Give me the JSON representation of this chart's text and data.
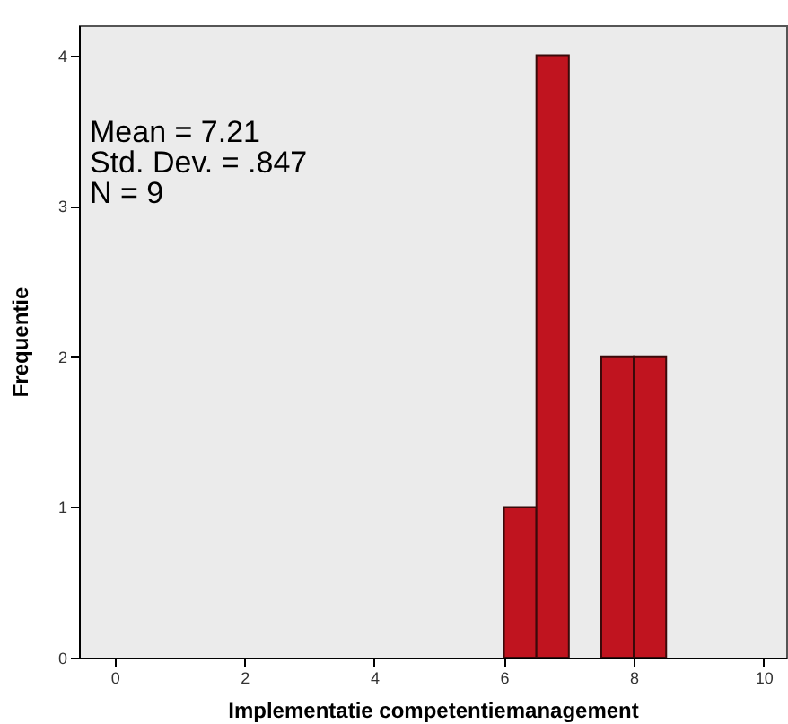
{
  "chart_data": {
    "type": "histogram",
    "xlabel": "Implementatie competentiemanagement",
    "ylabel": "Frequentie",
    "bins": [
      6,
      6.5,
      7,
      7.5,
      8,
      8.5
    ],
    "values": [
      1,
      4,
      0,
      2,
      2
    ],
    "color": "#c0141f",
    "xlim": [
      -0.55,
      10.35
    ],
    "xticks": [
      0,
      2,
      4,
      6,
      8,
      10
    ],
    "ylim": [
      0,
      4.2
    ],
    "yticks": [
      0,
      1,
      2,
      3,
      4
    ],
    "grid": false,
    "annotations": [
      "Mean = 7.21",
      "Std. Dev. = .847",
      "N = 9"
    ]
  }
}
